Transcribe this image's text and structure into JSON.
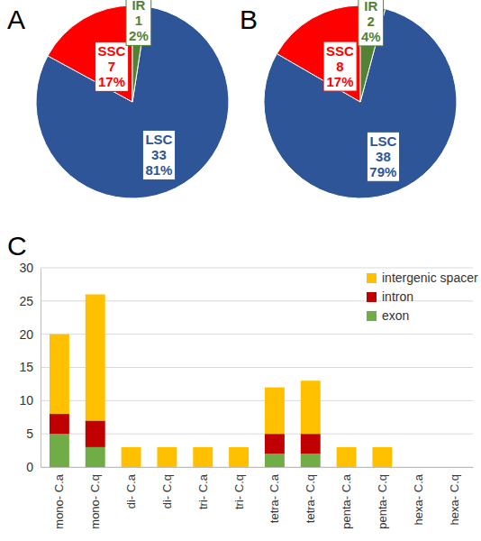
{
  "chart_data": [
    {
      "type": "pie",
      "title": "A",
      "categories": [
        "LSC",
        "SSC",
        "IR"
      ],
      "values": [
        33,
        7,
        1
      ],
      "percent_labels": [
        "81%",
        "17%",
        "2%"
      ],
      "colors": [
        "#2e5597",
        "#ff0000",
        "#548235"
      ],
      "data_labels": true
    },
    {
      "type": "pie",
      "title": "B",
      "categories": [
        "LSC",
        "SSC",
        "IR"
      ],
      "values": [
        38,
        8,
        2
      ],
      "percent_labels": [
        "79%",
        "17%",
        "4%"
      ],
      "colors": [
        "#2e5597",
        "#ff0000",
        "#548235"
      ],
      "data_labels": true
    },
    {
      "type": "bar",
      "title": "C",
      "stacked": true,
      "categories": [
        "mono- C.a",
        "mono- C.q",
        "di- C.a",
        "di- C.q",
        "tri- C.a",
        "tri- C.q",
        "tetra- C.a",
        "tetra- C.q",
        "penta- C.a",
        "penta- C.q",
        "hexa- C.a",
        "hexa- C.q"
      ],
      "series": [
        {
          "name": "exon",
          "color": "#70ad47",
          "values": [
            5,
            3,
            0,
            0,
            0,
            0,
            2,
            2,
            0,
            0,
            0,
            0
          ]
        },
        {
          "name": "intron",
          "color": "#c00000",
          "values": [
            3,
            4,
            0,
            0,
            0,
            0,
            3,
            3,
            0,
            0,
            0,
            0
          ]
        },
        {
          "name": "intergenic spacer",
          "color": "#ffc000",
          "values": [
            12,
            19,
            3,
            3,
            3,
            3,
            7,
            8,
            3,
            3,
            0,
            0
          ]
        }
      ],
      "ylim": [
        0,
        30
      ],
      "yticks": [
        0,
        5,
        10,
        15,
        20,
        25,
        30
      ],
      "grid": true,
      "legend": "upper right"
    }
  ]
}
